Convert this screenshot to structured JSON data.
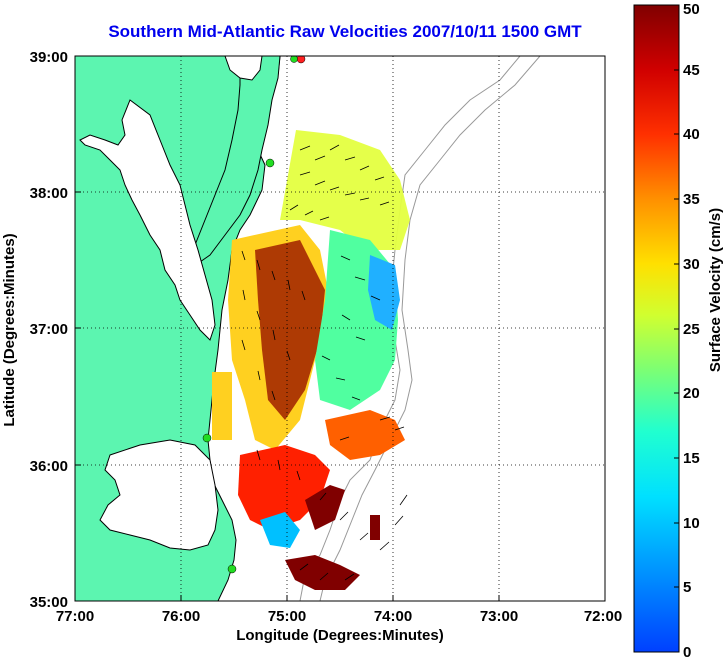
{
  "title": "Southern Mid-Atlantic Raw Velocities 2007/10/11 1500 GMT",
  "x_axis": {
    "label": "Longitude (Degrees:Minutes)",
    "ticks": [
      "77:00",
      "76:00",
      "75:00",
      "74:00",
      "73:00",
      "72:00"
    ]
  },
  "y_axis": {
    "label": "Latitude (Degrees:Minutes)",
    "ticks": [
      "35:00",
      "36:00",
      "37:00",
      "38:00",
      "39:00"
    ]
  },
  "colorbar": {
    "label": "Surface Velocity (cm/s)",
    "ticks": [
      "0",
      "5",
      "10",
      "15",
      "20",
      "25",
      "30",
      "35",
      "40",
      "45",
      "50"
    ],
    "min": 0,
    "max": 50,
    "colormap": "jet"
  },
  "map": {
    "lon_range": [
      -77.0,
      -72.0
    ],
    "lat_range": [
      35.0,
      39.0
    ],
    "land_color": "#5cf5b0",
    "water_color": "#ffffff",
    "coastline_color": "#000000",
    "bathymetry_color": "#999999",
    "grid": "dotted",
    "station_markers": [
      {
        "lon": -75.09,
        "lat": 38.97,
        "color": "#ff2020"
      },
      {
        "lon": -75.15,
        "lat": 38.96,
        "color": "#22dd22"
      },
      {
        "lon": -75.13,
        "lat": 38.22,
        "color": "#22dd22"
      },
      {
        "lon": -75.67,
        "lat": 36.19,
        "color": "#22dd22"
      },
      {
        "lon": -75.53,
        "lat": 35.25,
        "color": "#22dd22"
      }
    ],
    "velocity_field": "surface current vectors colored by speed over shelf region 35.2N-38.5N, 74.0W-75.7W"
  }
}
